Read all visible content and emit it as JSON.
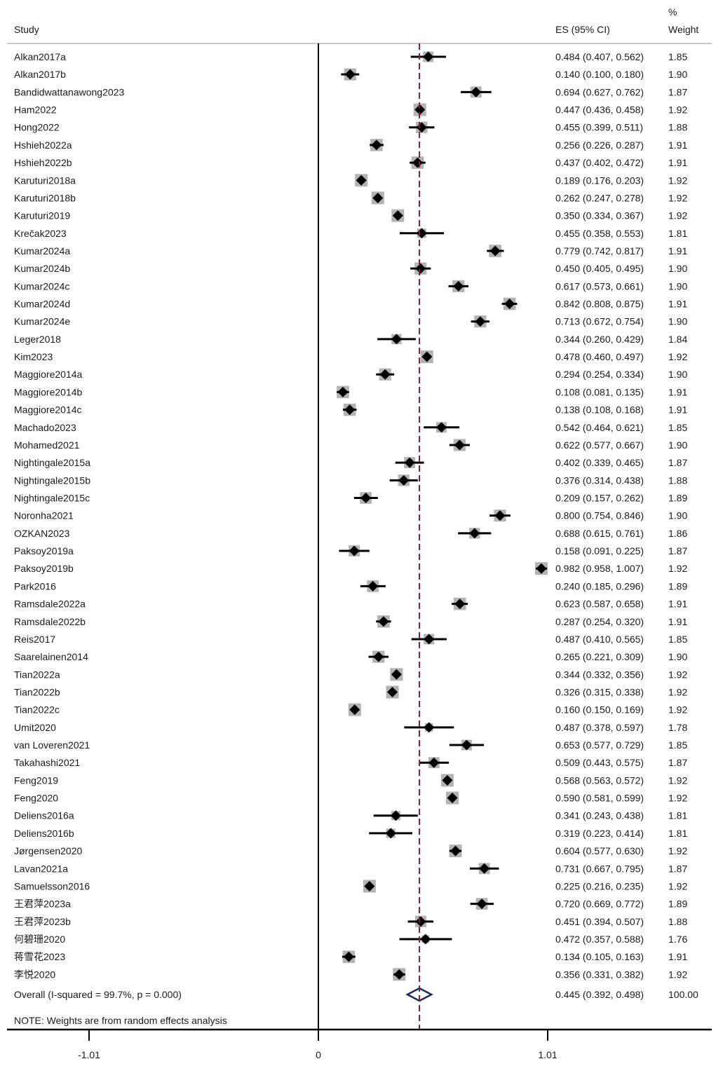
{
  "header": {
    "study": "Study",
    "es": "ES (95% CI)",
    "weight_line1": "%",
    "weight_line2": "Weight"
  },
  "note": "NOTE: Weights are from random effects analysis",
  "colors": {
    "marker": "#000000",
    "weight_box": "#b3b3b3",
    "ref_line": "#7a1f3a",
    "overall_diamond": "#1f2a5a"
  },
  "chart_data": {
    "type": "forest",
    "title": "",
    "x_ticks": [
      {
        "value": -1.01,
        "label": "-1.01"
      },
      {
        "value": 0,
        "label": "0"
      },
      {
        "value": 1.01,
        "label": "1.01"
      }
    ],
    "xlim": [
      -1.01,
      1.01
    ],
    "reference_line": 0.445,
    "studies": [
      {
        "name": "Alkan2017a",
        "es": 0.484,
        "lo": 0.407,
        "hi": 0.562,
        "es_text": "0.484 (0.407, 0.562)",
        "weight": "1.85"
      },
      {
        "name": "Alkan2017b",
        "es": 0.14,
        "lo": 0.1,
        "hi": 0.18,
        "es_text": "0.140 (0.100, 0.180)",
        "weight": "1.90"
      },
      {
        "name": "Bandidwattanawong2023",
        "es": 0.694,
        "lo": 0.627,
        "hi": 0.762,
        "es_text": "0.694 (0.627, 0.762)",
        "weight": "1.87"
      },
      {
        "name": "Ham2022",
        "es": 0.447,
        "lo": 0.436,
        "hi": 0.458,
        "es_text": "0.447 (0.436, 0.458)",
        "weight": "1.92"
      },
      {
        "name": "Hong2022",
        "es": 0.455,
        "lo": 0.399,
        "hi": 0.511,
        "es_text": "0.455 (0.399, 0.511)",
        "weight": "1.88"
      },
      {
        "name": "Hshieh2022a",
        "es": 0.256,
        "lo": 0.226,
        "hi": 0.287,
        "es_text": "0.256 (0.226, 0.287)",
        "weight": "1.91"
      },
      {
        "name": "Hshieh2022b",
        "es": 0.437,
        "lo": 0.402,
        "hi": 0.472,
        "es_text": "0.437 (0.402, 0.472)",
        "weight": "1.91"
      },
      {
        "name": "Karuturi2018a",
        "es": 0.189,
        "lo": 0.176,
        "hi": 0.203,
        "es_text": "0.189 (0.176, 0.203)",
        "weight": "1.92"
      },
      {
        "name": "Karuturi2018b",
        "es": 0.262,
        "lo": 0.247,
        "hi": 0.278,
        "es_text": "0.262 (0.247, 0.278)",
        "weight": "1.92"
      },
      {
        "name": "Karuturi2019",
        "es": 0.35,
        "lo": 0.334,
        "hi": 0.367,
        "es_text": "0.350 (0.334, 0.367)",
        "weight": "1.92"
      },
      {
        "name": "Krečak2023",
        "es": 0.455,
        "lo": 0.358,
        "hi": 0.553,
        "es_text": "0.455 (0.358, 0.553)",
        "weight": "1.81"
      },
      {
        "name": "Kumar2024a",
        "es": 0.779,
        "lo": 0.742,
        "hi": 0.817,
        "es_text": "0.779 (0.742, 0.817)",
        "weight": "1.91"
      },
      {
        "name": "Kumar2024b",
        "es": 0.45,
        "lo": 0.405,
        "hi": 0.495,
        "es_text": "0.450 (0.405, 0.495)",
        "weight": "1.90"
      },
      {
        "name": "Kumar2024c",
        "es": 0.617,
        "lo": 0.573,
        "hi": 0.661,
        "es_text": "0.617 (0.573, 0.661)",
        "weight": "1.90"
      },
      {
        "name": "Kumar2024d",
        "es": 0.842,
        "lo": 0.808,
        "hi": 0.875,
        "es_text": "0.842 (0.808, 0.875)",
        "weight": "1.91"
      },
      {
        "name": "Kumar2024e",
        "es": 0.713,
        "lo": 0.672,
        "hi": 0.754,
        "es_text": "0.713 (0.672, 0.754)",
        "weight": "1.90"
      },
      {
        "name": "Leger2018",
        "es": 0.344,
        "lo": 0.26,
        "hi": 0.429,
        "es_text": "0.344 (0.260, 0.429)",
        "weight": "1.84"
      },
      {
        "name": "Kim2023",
        "es": 0.478,
        "lo": 0.46,
        "hi": 0.497,
        "es_text": "0.478 (0.460, 0.497)",
        "weight": "1.92"
      },
      {
        "name": "Maggiore2014a",
        "es": 0.294,
        "lo": 0.254,
        "hi": 0.334,
        "es_text": "0.294 (0.254, 0.334)",
        "weight": "1.90"
      },
      {
        "name": "Maggiore2014b",
        "es": 0.108,
        "lo": 0.081,
        "hi": 0.135,
        "es_text": "0.108 (0.081, 0.135)",
        "weight": "1.91"
      },
      {
        "name": "Maggiore2014c",
        "es": 0.138,
        "lo": 0.108,
        "hi": 0.168,
        "es_text": "0.138 (0.108, 0.168)",
        "weight": "1.91"
      },
      {
        "name": "Machado2023",
        "es": 0.542,
        "lo": 0.464,
        "hi": 0.621,
        "es_text": "0.542 (0.464, 0.621)",
        "weight": "1.85"
      },
      {
        "name": "Mohamed2021",
        "es": 0.622,
        "lo": 0.577,
        "hi": 0.667,
        "es_text": "0.622 (0.577, 0.667)",
        "weight": "1.90"
      },
      {
        "name": "Nightingale2015a",
        "es": 0.402,
        "lo": 0.339,
        "hi": 0.465,
        "es_text": "0.402 (0.339, 0.465)",
        "weight": "1.87"
      },
      {
        "name": "Nightingale2015b",
        "es": 0.376,
        "lo": 0.314,
        "hi": 0.438,
        "es_text": "0.376 (0.314, 0.438)",
        "weight": "1.88"
      },
      {
        "name": "Nightingale2015c",
        "es": 0.209,
        "lo": 0.157,
        "hi": 0.262,
        "es_text": "0.209 (0.157, 0.262)",
        "weight": "1.89"
      },
      {
        "name": "Noronha2021",
        "es": 0.8,
        "lo": 0.754,
        "hi": 0.846,
        "es_text": "0.800 (0.754, 0.846)",
        "weight": "1.90"
      },
      {
        "name": "OZKAN2023",
        "es": 0.688,
        "lo": 0.615,
        "hi": 0.761,
        "es_text": "0.688 (0.615, 0.761)",
        "weight": "1.86"
      },
      {
        "name": "Paksoy2019a",
        "es": 0.158,
        "lo": 0.091,
        "hi": 0.225,
        "es_text": "0.158 (0.091, 0.225)",
        "weight": "1.87"
      },
      {
        "name": "Paksoy2019b",
        "es": 0.982,
        "lo": 0.958,
        "hi": 1.007,
        "es_text": "0.982 (0.958, 1.007)",
        "weight": "1.92"
      },
      {
        "name": "Park2016",
        "es": 0.24,
        "lo": 0.185,
        "hi": 0.296,
        "es_text": "0.240 (0.185, 0.296)",
        "weight": "1.89"
      },
      {
        "name": "Ramsdale2022a",
        "es": 0.623,
        "lo": 0.587,
        "hi": 0.658,
        "es_text": "0.623 (0.587, 0.658)",
        "weight": "1.91"
      },
      {
        "name": "Ramsdale2022b",
        "es": 0.287,
        "lo": 0.254,
        "hi": 0.32,
        "es_text": "0.287 (0.254, 0.320)",
        "weight": "1.91"
      },
      {
        "name": "Reis2017",
        "es": 0.487,
        "lo": 0.41,
        "hi": 0.565,
        "es_text": "0.487 (0.410, 0.565)",
        "weight": "1.85"
      },
      {
        "name": "Saarelainen2014",
        "es": 0.265,
        "lo": 0.221,
        "hi": 0.309,
        "es_text": "0.265 (0.221, 0.309)",
        "weight": "1.90"
      },
      {
        "name": "Tian2022a",
        "es": 0.344,
        "lo": 0.332,
        "hi": 0.356,
        "es_text": "0.344 (0.332, 0.356)",
        "weight": "1.92"
      },
      {
        "name": "Tian2022b",
        "es": 0.326,
        "lo": 0.315,
        "hi": 0.338,
        "es_text": "0.326 (0.315, 0.338)",
        "weight": "1.92"
      },
      {
        "name": "Tian2022c",
        "es": 0.16,
        "lo": 0.15,
        "hi": 0.169,
        "es_text": "0.160 (0.150, 0.169)",
        "weight": "1.92"
      },
      {
        "name": "Umit2020",
        "es": 0.487,
        "lo": 0.378,
        "hi": 0.597,
        "es_text": "0.487 (0.378, 0.597)",
        "weight": "1.78"
      },
      {
        "name": "van Loveren2021",
        "es": 0.653,
        "lo": 0.577,
        "hi": 0.729,
        "es_text": "0.653 (0.577, 0.729)",
        "weight": "1.85"
      },
      {
        "name": "Takahashi2021",
        "es": 0.509,
        "lo": 0.443,
        "hi": 0.575,
        "es_text": "0.509 (0.443, 0.575)",
        "weight": "1.87"
      },
      {
        "name": "Feng2019",
        "es": 0.568,
        "lo": 0.563,
        "hi": 0.572,
        "es_text": "0.568 (0.563, 0.572)",
        "weight": "1.92"
      },
      {
        "name": "Feng2020",
        "es": 0.59,
        "lo": 0.581,
        "hi": 0.599,
        "es_text": "0.590 (0.581, 0.599)",
        "weight": "1.92"
      },
      {
        "name": "Deliens2016a",
        "es": 0.341,
        "lo": 0.243,
        "hi": 0.438,
        "es_text": "0.341 (0.243, 0.438)",
        "weight": "1.81"
      },
      {
        "name": "Deliens2016b",
        "es": 0.319,
        "lo": 0.223,
        "hi": 0.414,
        "es_text": "0.319 (0.223, 0.414)",
        "weight": "1.81"
      },
      {
        "name": "Jørgensen2020",
        "es": 0.604,
        "lo": 0.577,
        "hi": 0.63,
        "es_text": "0.604 (0.577, 0.630)",
        "weight": "1.92"
      },
      {
        "name": "Lavan2021a",
        "es": 0.731,
        "lo": 0.667,
        "hi": 0.795,
        "es_text": "0.731 (0.667, 0.795)",
        "weight": "1.87"
      },
      {
        "name": "Samuelsson2016",
        "es": 0.225,
        "lo": 0.216,
        "hi": 0.235,
        "es_text": "0.225 (0.216, 0.235)",
        "weight": "1.92"
      },
      {
        "name": "王君萍2023a",
        "es": 0.72,
        "lo": 0.669,
        "hi": 0.772,
        "es_text": "0.720 (0.669, 0.772)",
        "weight": "1.89"
      },
      {
        "name": "王君萍2023b",
        "es": 0.451,
        "lo": 0.394,
        "hi": 0.507,
        "es_text": "0.451 (0.394, 0.507)",
        "weight": "1.88"
      },
      {
        "name": "何碧珊2020",
        "es": 0.472,
        "lo": 0.357,
        "hi": 0.588,
        "es_text": "0.472 (0.357, 0.588)",
        "weight": "1.76"
      },
      {
        "name": "蒋雪花2023",
        "es": 0.134,
        "lo": 0.105,
        "hi": 0.163,
        "es_text": "0.134 (0.105, 0.163)",
        "weight": "1.91"
      },
      {
        "name": "李悦2020",
        "es": 0.356,
        "lo": 0.331,
        "hi": 0.382,
        "es_text": "0.356 (0.331, 0.382)",
        "weight": "1.92"
      }
    ],
    "overall": {
      "label": "Overall  (I-squared = 99.7%, p = 0.000)",
      "es": 0.445,
      "lo": 0.392,
      "hi": 0.498,
      "es_text": "0.445 (0.392, 0.498)",
      "weight": "100.00"
    }
  }
}
